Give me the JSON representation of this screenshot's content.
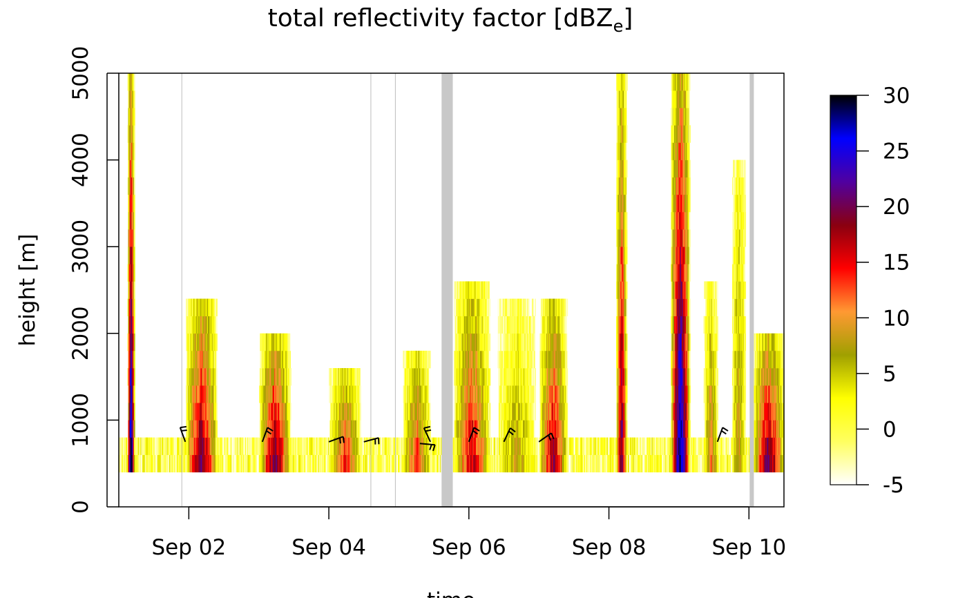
{
  "chart_data": {
    "type": "heatmap",
    "title": "total reflectivity factor [dBZ",
    "title_subscript": "e",
    "title_suffix": "]",
    "xlabel": "time",
    "ylabel": "height [m]",
    "x_tick_labels": [
      "Sep 02",
      "Sep 04",
      "Sep 06",
      "Sep 08",
      "Sep 10"
    ],
    "x_tick_values_days": [
      2,
      4,
      6,
      8,
      10
    ],
    "xlim_days": [
      1.0,
      10.5
    ],
    "y_ticks": [
      0,
      1000,
      2000,
      3000,
      4000,
      5000
    ],
    "ylim": [
      0,
      5000
    ],
    "data_floor_height_m": 400,
    "colorbar": {
      "ticks": [
        -5,
        0,
        5,
        10,
        15,
        20,
        25,
        30
      ],
      "range": [
        -5,
        30
      ],
      "colors": [
        "#ffffff",
        "#ffff60",
        "#ffff00",
        "#a0a000",
        "#ff9933",
        "#ff0000",
        "#8a0010",
        "#5000a0",
        "#0000ff",
        "#000000"
      ]
    },
    "missing_data_color": "#c8c8c8",
    "missing_intervals_days": [
      [
        5.61,
        5.77
      ],
      [
        10.01,
        10.07
      ]
    ],
    "vertical_gridlines_days": [
      1.9,
      4.6,
      4.95
    ],
    "events": [
      {
        "start": 1.12,
        "end": 1.22,
        "top": 5000,
        "peak": 30
      },
      {
        "start": 1.95,
        "end": 2.4,
        "top": 2400,
        "peak": 21
      },
      {
        "start": 3.0,
        "end": 3.45,
        "top": 2000,
        "peak": 21
      },
      {
        "start": 4.0,
        "end": 4.45,
        "top": 1600,
        "peak": 15
      },
      {
        "start": 5.05,
        "end": 5.45,
        "top": 1800,
        "peak": 14
      },
      {
        "start": 5.78,
        "end": 6.3,
        "top": 2600,
        "peak": 17
      },
      {
        "start": 6.4,
        "end": 6.95,
        "top": 2400,
        "peak": 8
      },
      {
        "start": 7.0,
        "end": 7.4,
        "top": 2400,
        "peak": 19
      },
      {
        "start": 8.1,
        "end": 8.25,
        "top": 5000,
        "peak": 22
      },
      {
        "start": 8.88,
        "end": 9.15,
        "top": 5000,
        "peak": 30
      },
      {
        "start": 9.35,
        "end": 9.55,
        "top": 2600,
        "peak": 12
      },
      {
        "start": 9.75,
        "end": 9.95,
        "top": 4000,
        "peak": 10
      },
      {
        "start": 10.05,
        "end": 10.5,
        "top": 2000,
        "peak": 21
      }
    ],
    "wind_barbs": [
      {
        "day": 1.95,
        "height": 750,
        "direction_deg": 340
      },
      {
        "day": 3.05,
        "height": 750,
        "direction_deg": 20
      },
      {
        "day": 4.0,
        "height": 750,
        "direction_deg": 70
      },
      {
        "day": 4.5,
        "height": 750,
        "direction_deg": 75
      },
      {
        "day": 5.3,
        "height": 730,
        "direction_deg": 95
      },
      {
        "day": 5.45,
        "height": 750,
        "direction_deg": 335
      },
      {
        "day": 6.0,
        "height": 750,
        "direction_deg": 20
      },
      {
        "day": 6.5,
        "height": 750,
        "direction_deg": 25
      },
      {
        "day": 7.0,
        "height": 750,
        "direction_deg": 55
      },
      {
        "day": 9.55,
        "height": 750,
        "direction_deg": 20
      }
    ]
  }
}
